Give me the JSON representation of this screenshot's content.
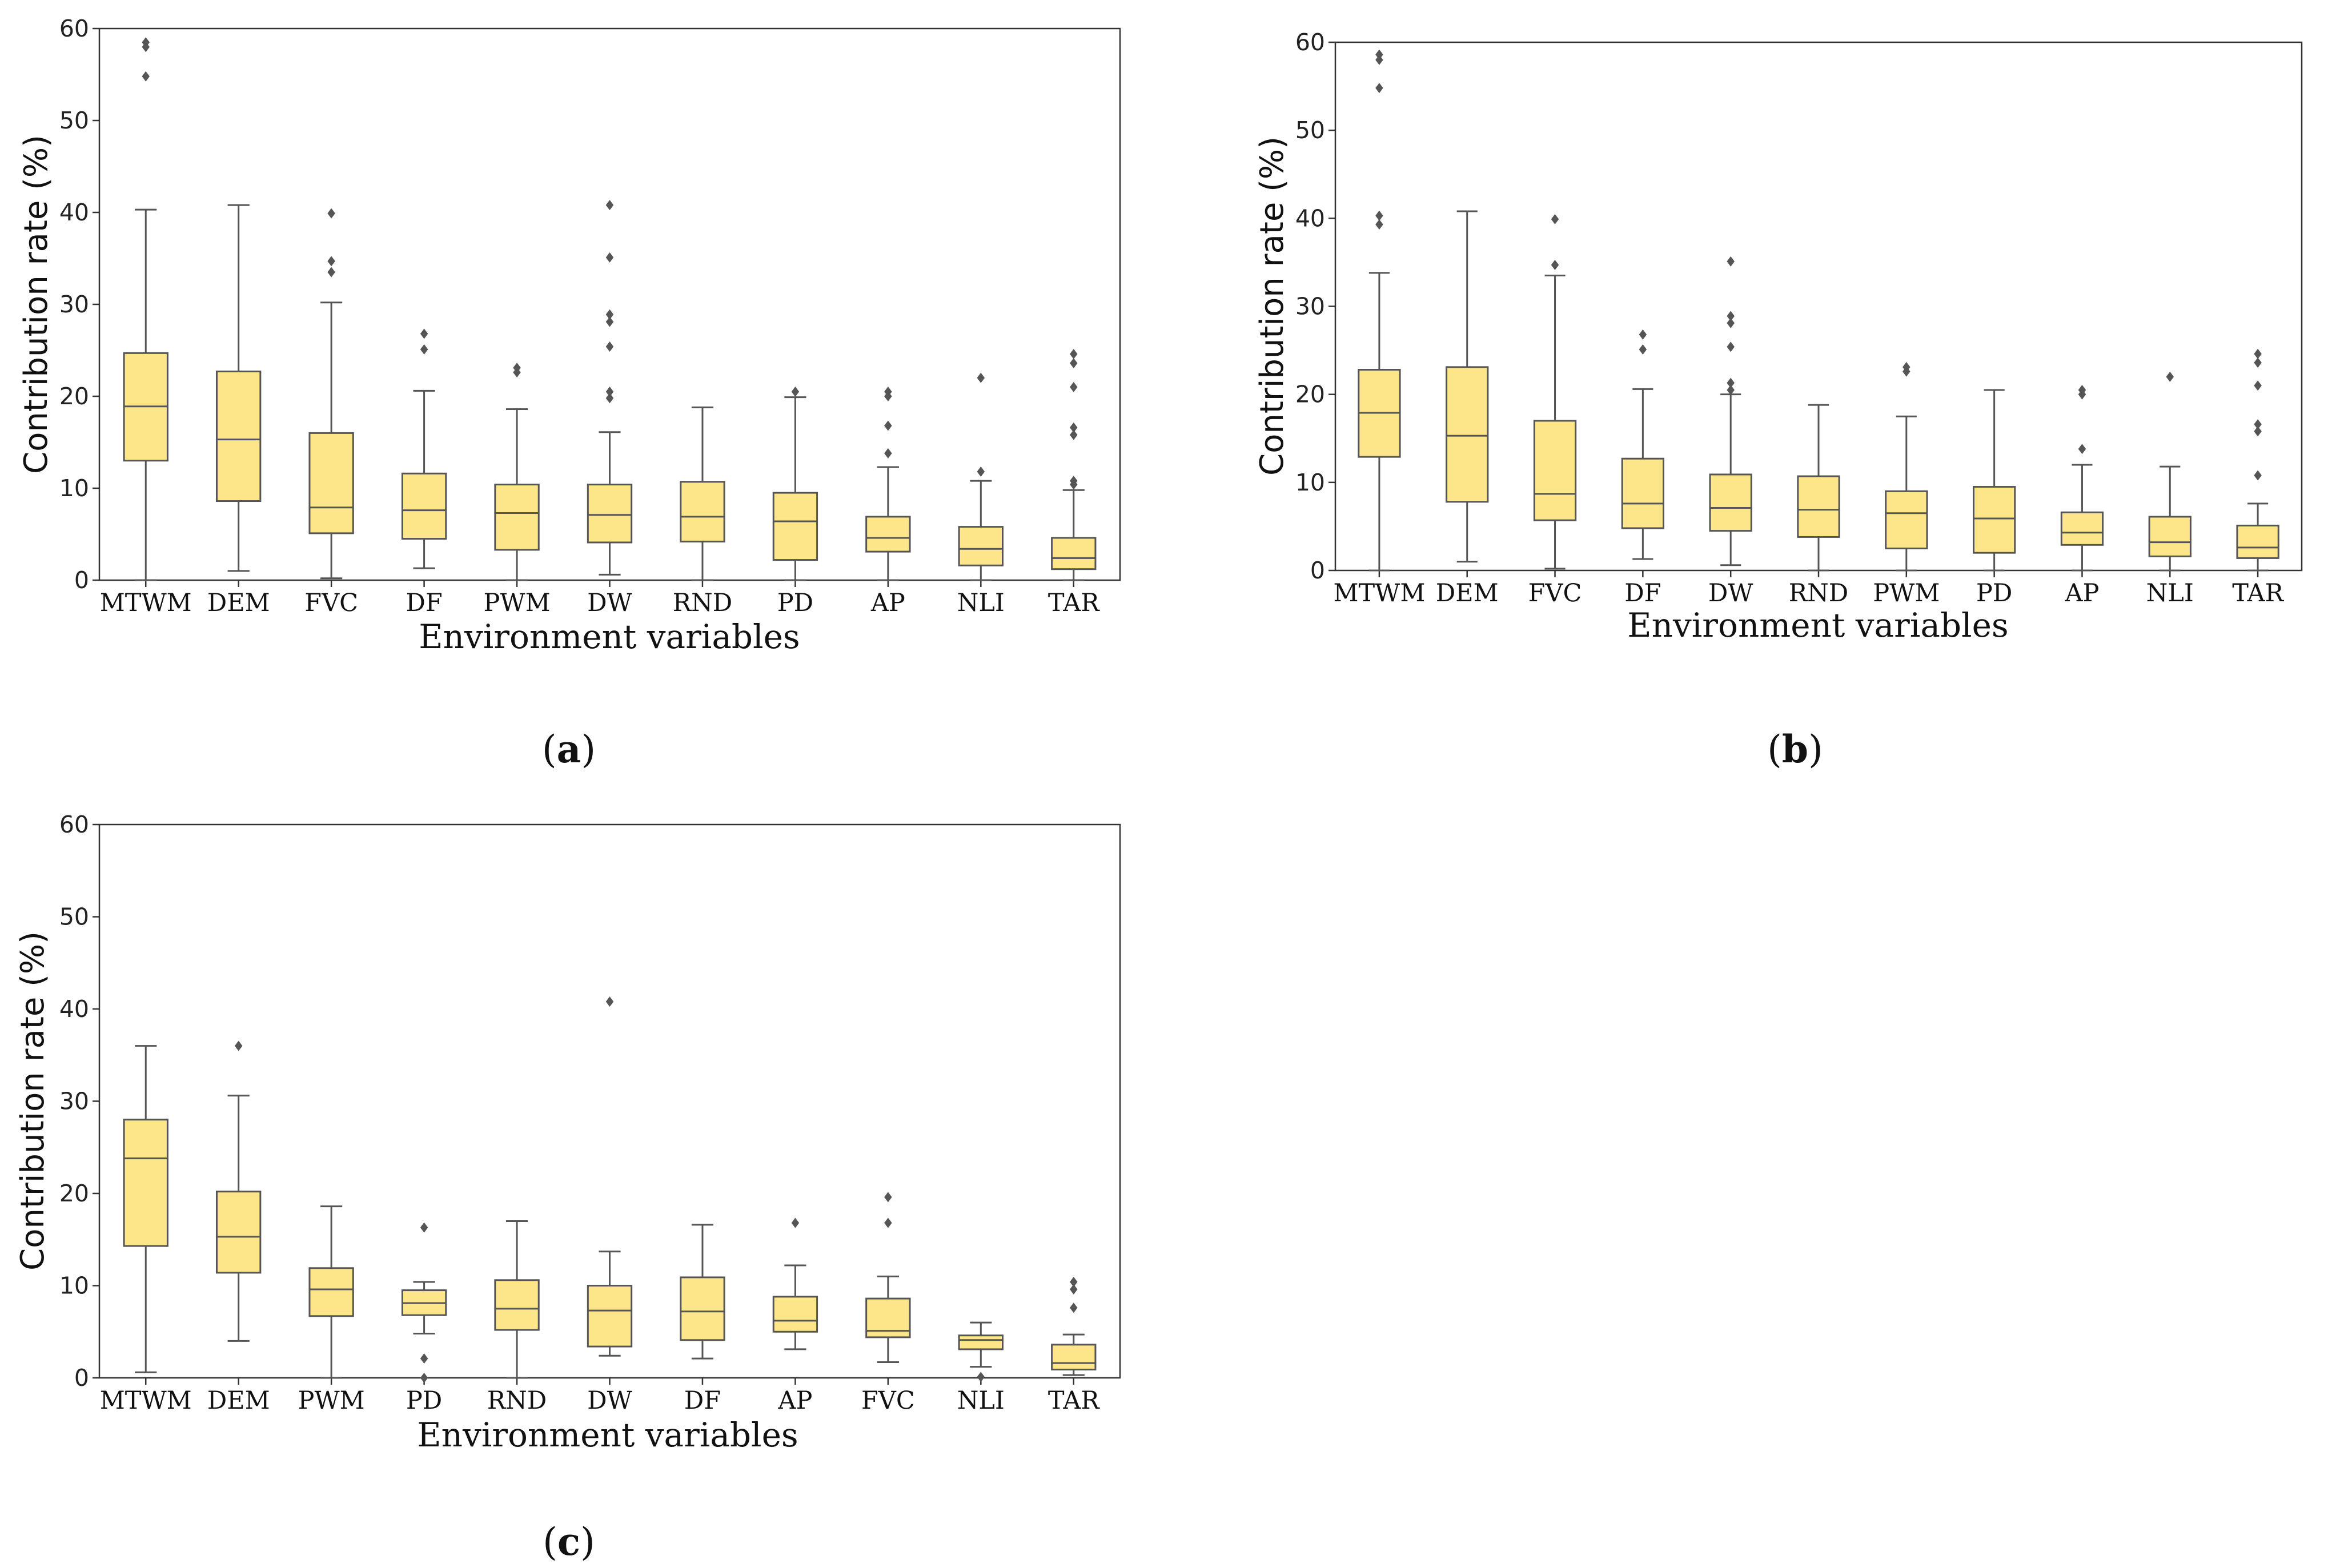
{
  "chart_data": [
    {
      "type": "box",
      "panel_label": "a",
      "xlabel": "Environment variables",
      "ylabel": "Contribution rate (%)",
      "ylim": [
        0,
        60
      ],
      "yticks": [
        0,
        10,
        20,
        30,
        40,
        50,
        60
      ],
      "box_color": "#fde68a",
      "line_color": "#555555",
      "categories": [
        "MTWM",
        "DEM",
        "FVC",
        "DF",
        "PWM",
        "DW",
        "RND",
        "PD",
        "AP",
        "NLI",
        "TAR"
      ],
      "boxes": [
        {
          "min": 0,
          "q1": 13,
          "median": 18.9,
          "q3": 24.7,
          "max": 40.3,
          "outliers": [
            54.8,
            58,
            58.5
          ]
        },
        {
          "min": 1,
          "q1": 8.6,
          "median": 15.3,
          "q3": 22.7,
          "max": 40.8,
          "outliers": []
        },
        {
          "min": 0.2,
          "q1": 5.1,
          "median": 7.9,
          "q3": 16,
          "max": 30.2,
          "outliers": [
            33.5,
            34.7,
            39.9
          ]
        },
        {
          "min": 1.3,
          "q1": 4.5,
          "median": 7.6,
          "q3": 11.6,
          "max": 20.6,
          "outliers": [
            25.1,
            26.8
          ]
        },
        {
          "min": 0,
          "q1": 3.3,
          "median": 7.3,
          "q3": 10.4,
          "max": 18.6,
          "outliers": [
            22.6,
            23.1
          ]
        },
        {
          "min": 0.6,
          "q1": 4.1,
          "median": 7.1,
          "q3": 10.4,
          "max": 16.1,
          "outliers": [
            19.8,
            20.5,
            25.4,
            28.1,
            28.9,
            35.1,
            40.8
          ]
        },
        {
          "min": 0,
          "q1": 4.2,
          "median": 6.9,
          "q3": 10.7,
          "max": 18.8,
          "outliers": []
        },
        {
          "min": 0,
          "q1": 2.2,
          "median": 6.4,
          "q3": 9.5,
          "max": 19.9,
          "outliers": [
            20.5
          ]
        },
        {
          "min": 0,
          "q1": 3.1,
          "median": 4.6,
          "q3": 6.9,
          "max": 12.3,
          "outliers": [
            13.8,
            16.8,
            20,
            20.5
          ]
        },
        {
          "min": 0,
          "q1": 1.6,
          "median": 3.4,
          "q3": 5.8,
          "max": 10.8,
          "outliers": [
            11.8,
            22
          ]
        },
        {
          "min": 0,
          "q1": 1.2,
          "median": 2.4,
          "q3": 4.6,
          "max": 9.8,
          "outliers": [
            10.4,
            10.8,
            15.8,
            16.6,
            21,
            23.6,
            24.6
          ]
        }
      ]
    },
    {
      "type": "box",
      "panel_label": "b",
      "xlabel": "Environment variables",
      "ylabel": "Contribution rate (%)",
      "ylim": [
        0,
        60
      ],
      "yticks": [
        0,
        10,
        20,
        30,
        40,
        50,
        60
      ],
      "box_color": "#fde68a",
      "line_color": "#555555",
      "categories": [
        "MTWM",
        "DEM",
        "FVC",
        "DF",
        "DW",
        "RND",
        "PWM",
        "PD",
        "AP",
        "NLI",
        "TAR"
      ],
      "boxes": [
        {
          "min": 0,
          "q1": 12.9,
          "median": 17.9,
          "q3": 22.8,
          "max": 33.8,
          "outliers": [
            39.3,
            40.3,
            54.8,
            58,
            58.6
          ]
        },
        {
          "min": 1,
          "q1": 7.8,
          "median": 15.3,
          "q3": 23.1,
          "max": 40.8,
          "outliers": []
        },
        {
          "min": 0.2,
          "q1": 5.7,
          "median": 8.7,
          "q3": 17,
          "max": 33.5,
          "outliers": [
            34.7,
            39.9
          ]
        },
        {
          "min": 1.3,
          "q1": 4.8,
          "median": 7.6,
          "q3": 12.7,
          "max": 20.6,
          "outliers": [
            25.1,
            26.8
          ]
        },
        {
          "min": 0.6,
          "q1": 4.5,
          "median": 7.1,
          "q3": 10.9,
          "max": 20,
          "outliers": [
            20.5,
            21.3,
            25.4,
            28.1,
            28.9,
            35.1
          ]
        },
        {
          "min": 0,
          "q1": 3.8,
          "median": 6.9,
          "q3": 10.7,
          "max": 18.8,
          "outliers": []
        },
        {
          "min": 0,
          "q1": 2.5,
          "median": 6.5,
          "q3": 9,
          "max": 17.5,
          "outliers": [
            22.6,
            23.1
          ]
        },
        {
          "min": 0,
          "q1": 2,
          "median": 5.9,
          "q3": 9.5,
          "max": 20.5,
          "outliers": []
        },
        {
          "min": 0,
          "q1": 2.9,
          "median": 4.3,
          "q3": 6.6,
          "max": 12,
          "outliers": [
            13.8,
            20,
            20.5
          ]
        },
        {
          "min": 0,
          "q1": 1.6,
          "median": 3.2,
          "q3": 6.1,
          "max": 11.8,
          "outliers": [
            22
          ]
        },
        {
          "min": 0,
          "q1": 1.4,
          "median": 2.6,
          "q3": 5.1,
          "max": 7.6,
          "outliers": [
            10.8,
            15.8,
            16.6,
            21,
            23.6,
            24.6
          ]
        }
      ]
    },
    {
      "type": "box",
      "panel_label": "c",
      "xlabel": "Environment variables",
      "ylabel": "Contribution rate (%)",
      "ylim": [
        0,
        60
      ],
      "yticks": [
        0,
        10,
        20,
        30,
        40,
        50,
        60
      ],
      "box_color": "#fde68a",
      "line_color": "#555555",
      "categories": [
        "MTWM",
        "DEM",
        "PWM",
        "PD",
        "RND",
        "DW",
        "DF",
        "AP",
        "FVC",
        "NLI",
        "TAR"
      ],
      "boxes": [
        {
          "min": 0.6,
          "q1": 14.3,
          "median": 23.8,
          "q3": 28,
          "max": 36,
          "outliers": []
        },
        {
          "min": 4,
          "q1": 11.4,
          "median": 15.3,
          "q3": 20.2,
          "max": 30.6,
          "outliers": [
            36
          ]
        },
        {
          "min": 0,
          "q1": 6.7,
          "median": 9.6,
          "q3": 11.9,
          "max": 18.6,
          "outliers": []
        },
        {
          "min": 4.8,
          "q1": 6.8,
          "median": 8.1,
          "q3": 9.5,
          "max": 10.4,
          "outliers": [
            0,
            2.1,
            16.3
          ]
        },
        {
          "min": 0,
          "q1": 5.2,
          "median": 7.5,
          "q3": 10.6,
          "max": 17,
          "outliers": []
        },
        {
          "min": 2.4,
          "q1": 3.4,
          "median": 7.3,
          "q3": 10,
          "max": 13.7,
          "outliers": [
            40.8
          ]
        },
        {
          "min": 2.1,
          "q1": 4.1,
          "median": 7.2,
          "q3": 10.9,
          "max": 16.6,
          "outliers": []
        },
        {
          "min": 3.1,
          "q1": 5,
          "median": 6.2,
          "q3": 8.8,
          "max": 12.2,
          "outliers": [
            16.8
          ]
        },
        {
          "min": 1.7,
          "q1": 4.4,
          "median": 5.1,
          "q3": 8.6,
          "max": 11,
          "outliers": [
            16.8,
            19.6
          ]
        },
        {
          "min": 1.2,
          "q1": 3.1,
          "median": 4.1,
          "q3": 4.6,
          "max": 6,
          "outliers": [
            0.1
          ]
        },
        {
          "min": 0.3,
          "q1": 0.9,
          "median": 1.6,
          "q3": 3.6,
          "max": 4.7,
          "outliers": [
            7.6,
            9.6,
            10.4
          ]
        }
      ]
    }
  ]
}
